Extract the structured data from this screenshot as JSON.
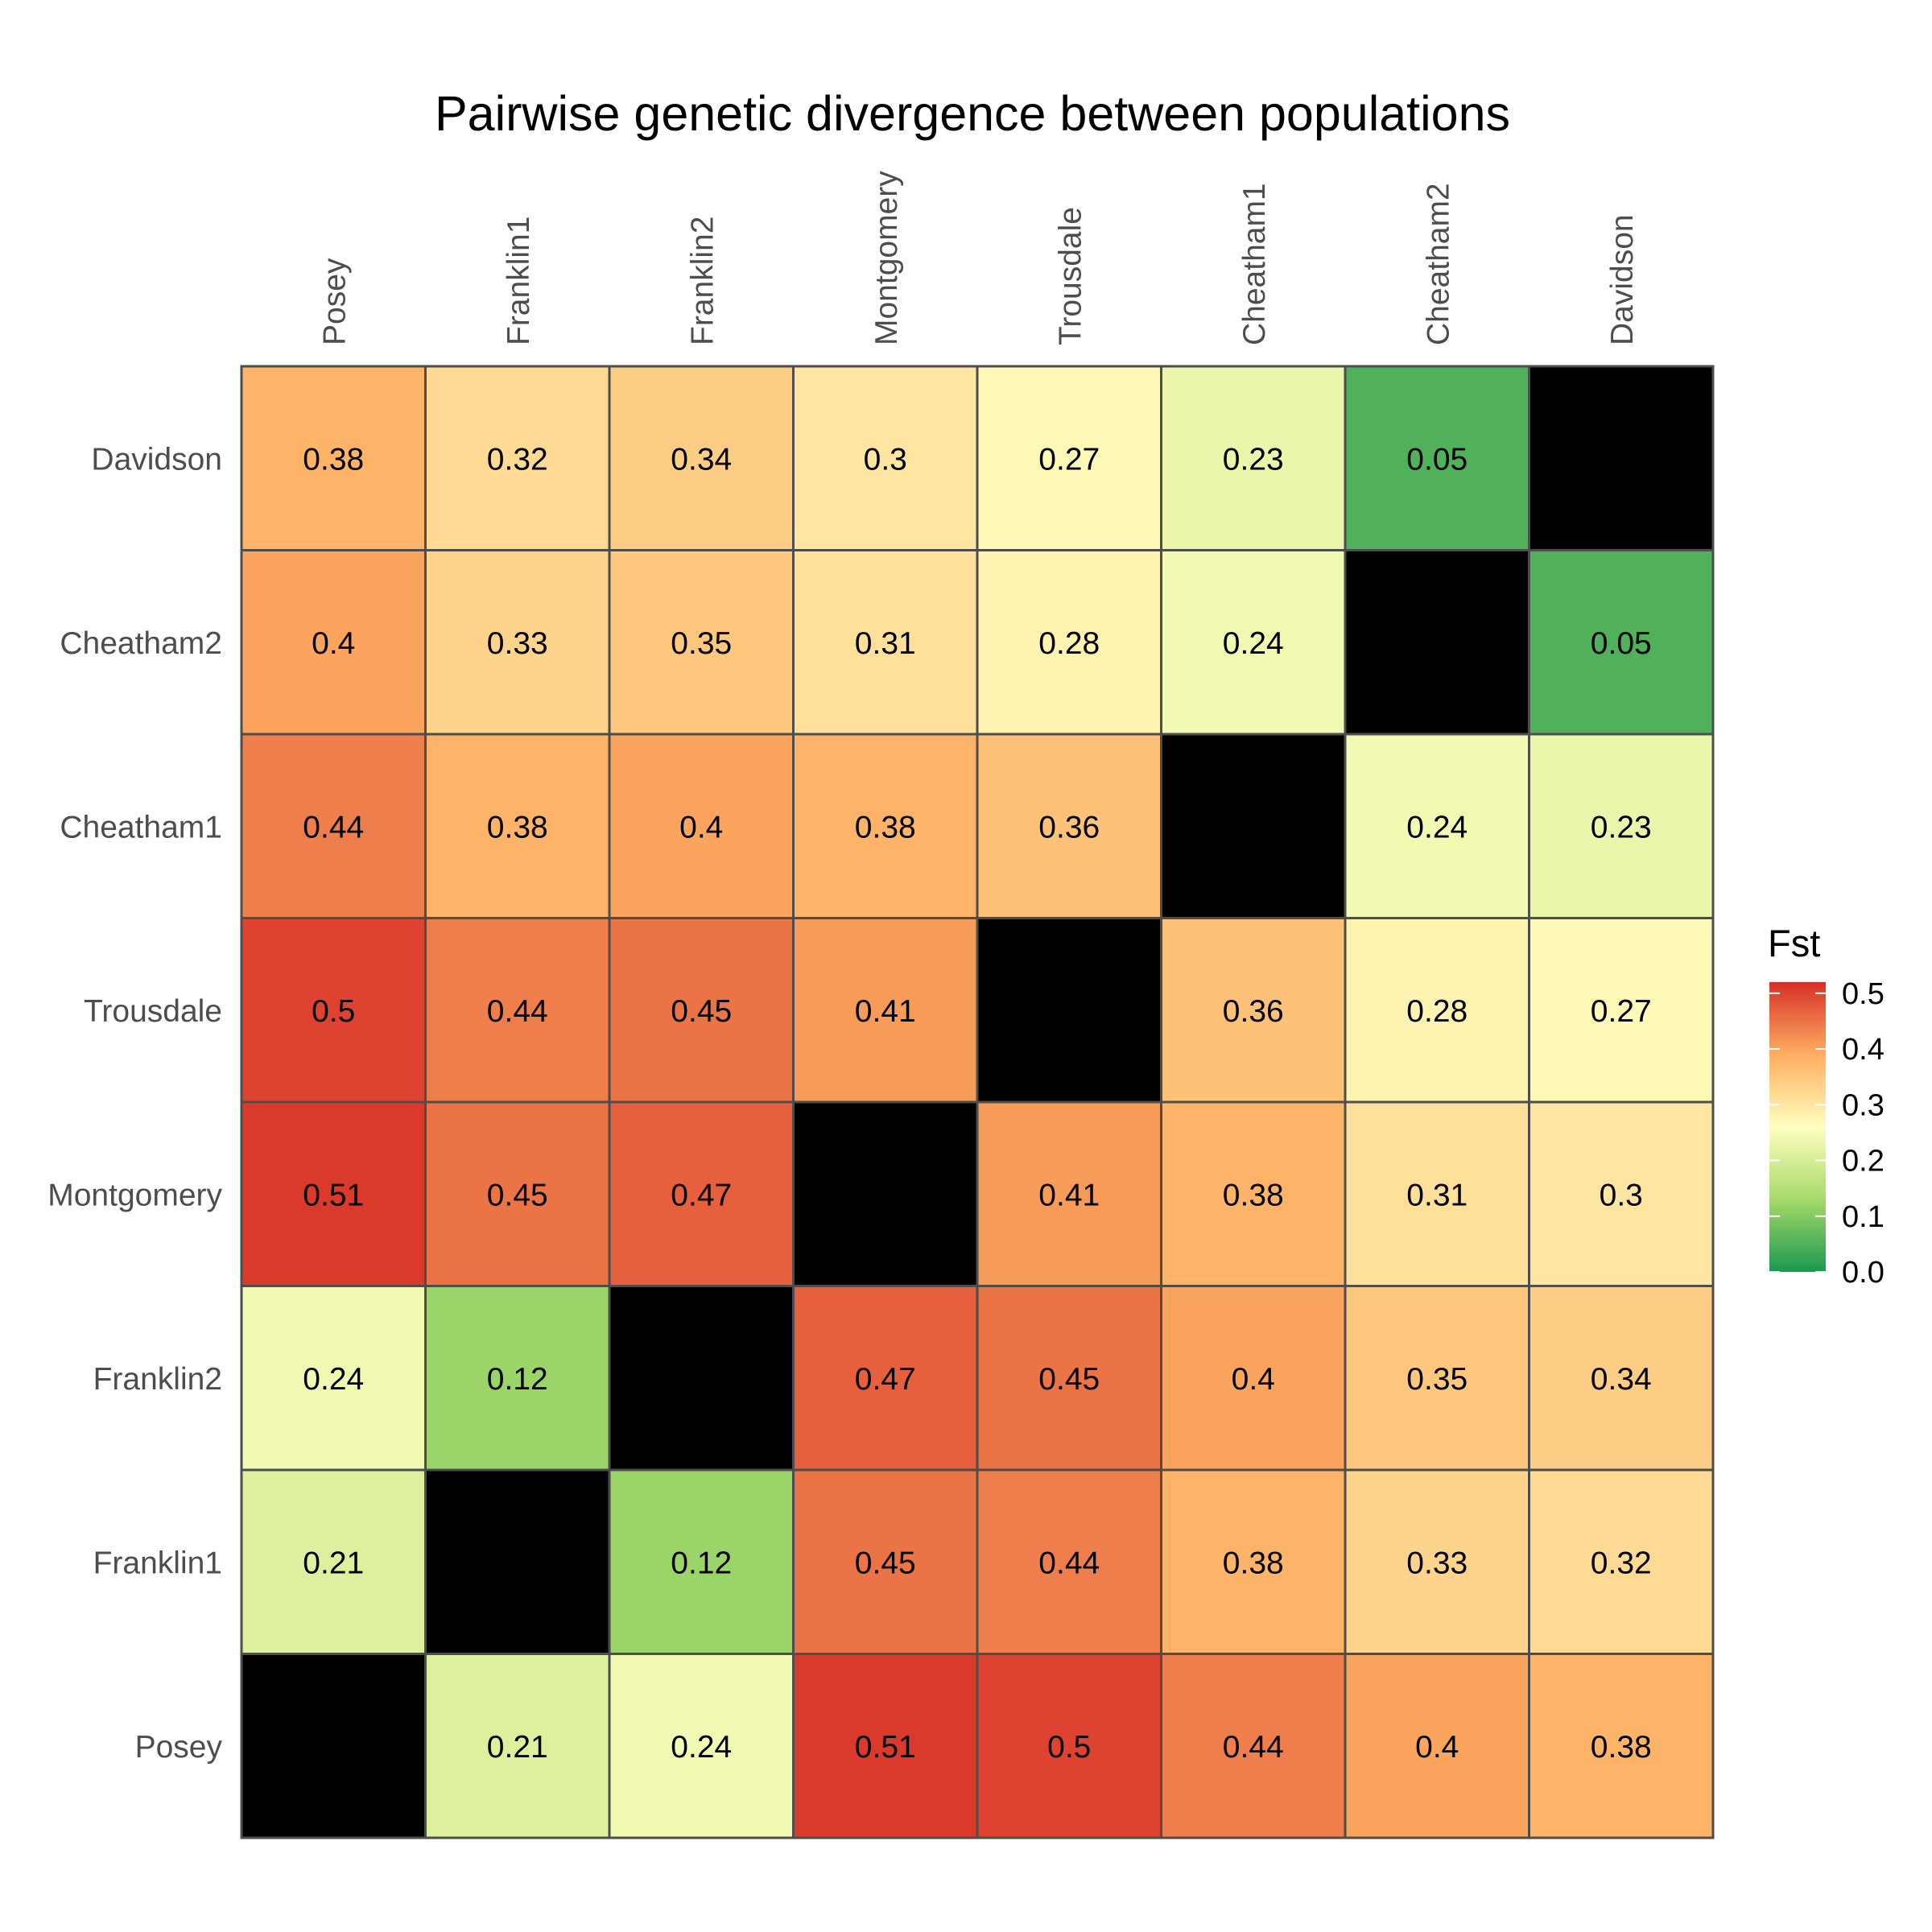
{
  "chart_data": {
    "type": "heatmap",
    "title": "Pairwise genetic divergence between populations",
    "x_categories": [
      "Posey",
      "Franklin1",
      "Franklin2",
      "Montgomery",
      "Trousdale",
      "Cheatham1",
      "Cheatham2",
      "Davidson"
    ],
    "y_categories": [
      "Posey",
      "Franklin1",
      "Franklin2",
      "Montgomery",
      "Trousdale",
      "Cheatham1",
      "Cheatham2",
      "Davidson"
    ],
    "values": [
      [
        null,
        0.21,
        0.24,
        0.51,
        0.5,
        0.44,
        0.4,
        0.38
      ],
      [
        0.21,
        null,
        0.12,
        0.45,
        0.44,
        0.38,
        0.33,
        0.32
      ],
      [
        0.24,
        0.12,
        null,
        0.47,
        0.45,
        0.4,
        0.35,
        0.34
      ],
      [
        0.51,
        0.45,
        0.47,
        null,
        0.41,
        0.38,
        0.31,
        0.3
      ],
      [
        0.5,
        0.44,
        0.45,
        0.41,
        null,
        0.36,
        0.28,
        0.27
      ],
      [
        0.44,
        0.38,
        0.4,
        0.38,
        0.36,
        null,
        0.24,
        0.23
      ],
      [
        0.4,
        0.33,
        0.35,
        0.31,
        0.28,
        0.24,
        null,
        0.05
      ],
      [
        0.38,
        0.32,
        0.34,
        0.3,
        0.27,
        0.23,
        0.05,
        null
      ]
    ],
    "x_axis_position": "top",
    "y_order": "bottom-to-top",
    "diagonal_color": "#000000",
    "cell_border_color": "#4d4d4d",
    "legend": {
      "title": "Fst",
      "placement": "right",
      "range": [
        0,
        0.52
      ],
      "ticks": [
        "0.0",
        "0.1",
        "0.2",
        "0.3",
        "0.4",
        "0.5"
      ],
      "color_stops": [
        {
          "value": 0.0,
          "color": "#1a9850"
        },
        {
          "value": 0.13,
          "color": "#a6d96a"
        },
        {
          "value": 0.26,
          "color": "#ffffbf"
        },
        {
          "value": 0.39,
          "color": "#fdae61"
        },
        {
          "value": 0.52,
          "color": "#d73027"
        }
      ]
    }
  }
}
